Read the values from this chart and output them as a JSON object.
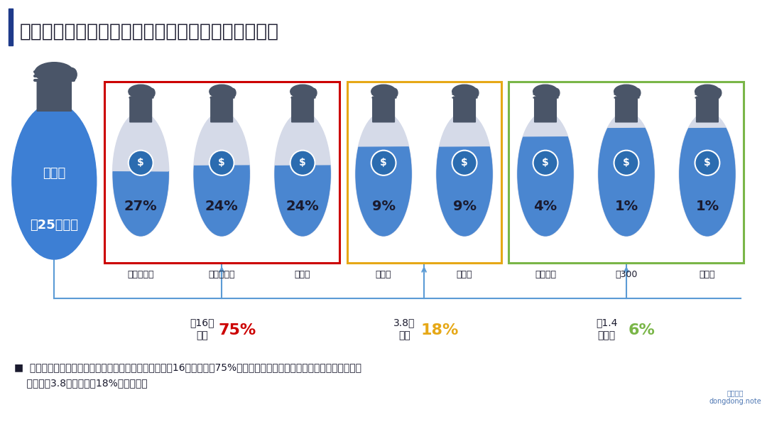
{
  "title": "资本集中在头部企业，整个二手车电商市场马太效应",
  "bg_color": "#ffffff",
  "title_color": "#1a1a2e",
  "title_bar_color": "#1e3a8a",
  "companies": [
    "瓜子二手车",
    "优信二手车",
    "大搜车",
    "人人车",
    "车置宝",
    "天天拍车",
    "车300",
    "迈迈车"
  ],
  "percentages": [
    "27%",
    "24%",
    "24%",
    "9%",
    "9%",
    "4%",
    "1%",
    "1%"
  ],
  "fill_ratios": [
    0.48,
    0.43,
    0.43,
    0.28,
    0.28,
    0.2,
    0.13,
    0.13
  ],
  "groups": [
    {
      "indices": [
        0,
        1,
        2
      ],
      "border_color": "#cc0000",
      "amount": "约16亿\n美元",
      "pct": "75%",
      "pct_color": "#cc0000"
    },
    {
      "indices": [
        3,
        4
      ],
      "border_color": "#e6a817",
      "amount": "3.8亿\n美元",
      "pct": "18%",
      "pct_color": "#e6a817"
    },
    {
      "indices": [
        5,
        6,
        7
      ],
      "border_color": "#7ab648",
      "amount": "约1.4\n亿美元",
      "pct": "6%",
      "pct_color": "#7ab648"
    }
  ],
  "big_bag_label": "约25亿美元",
  "big_bag_sublabel": "二手车",
  "footnote_line1": "■  资本投资集中瓜子、优信、大搜车三大平台，总投资约16亿美元，占75%的投资额；其次人人车、车置宝位于第二阵营，",
  "footnote_line2": "    总投资额3.8亿美元，占18%的投资额。",
  "bag_blue": "#4a86d0",
  "bag_gray": "#d5dae8",
  "bag_top_dark": "#4a5568",
  "dollar_blue": "#2b6cb0",
  "line_color": "#5b9bd5",
  "big_bag_blue": "#3d7fd4",
  "pct_text_color": "#1a1a2e"
}
